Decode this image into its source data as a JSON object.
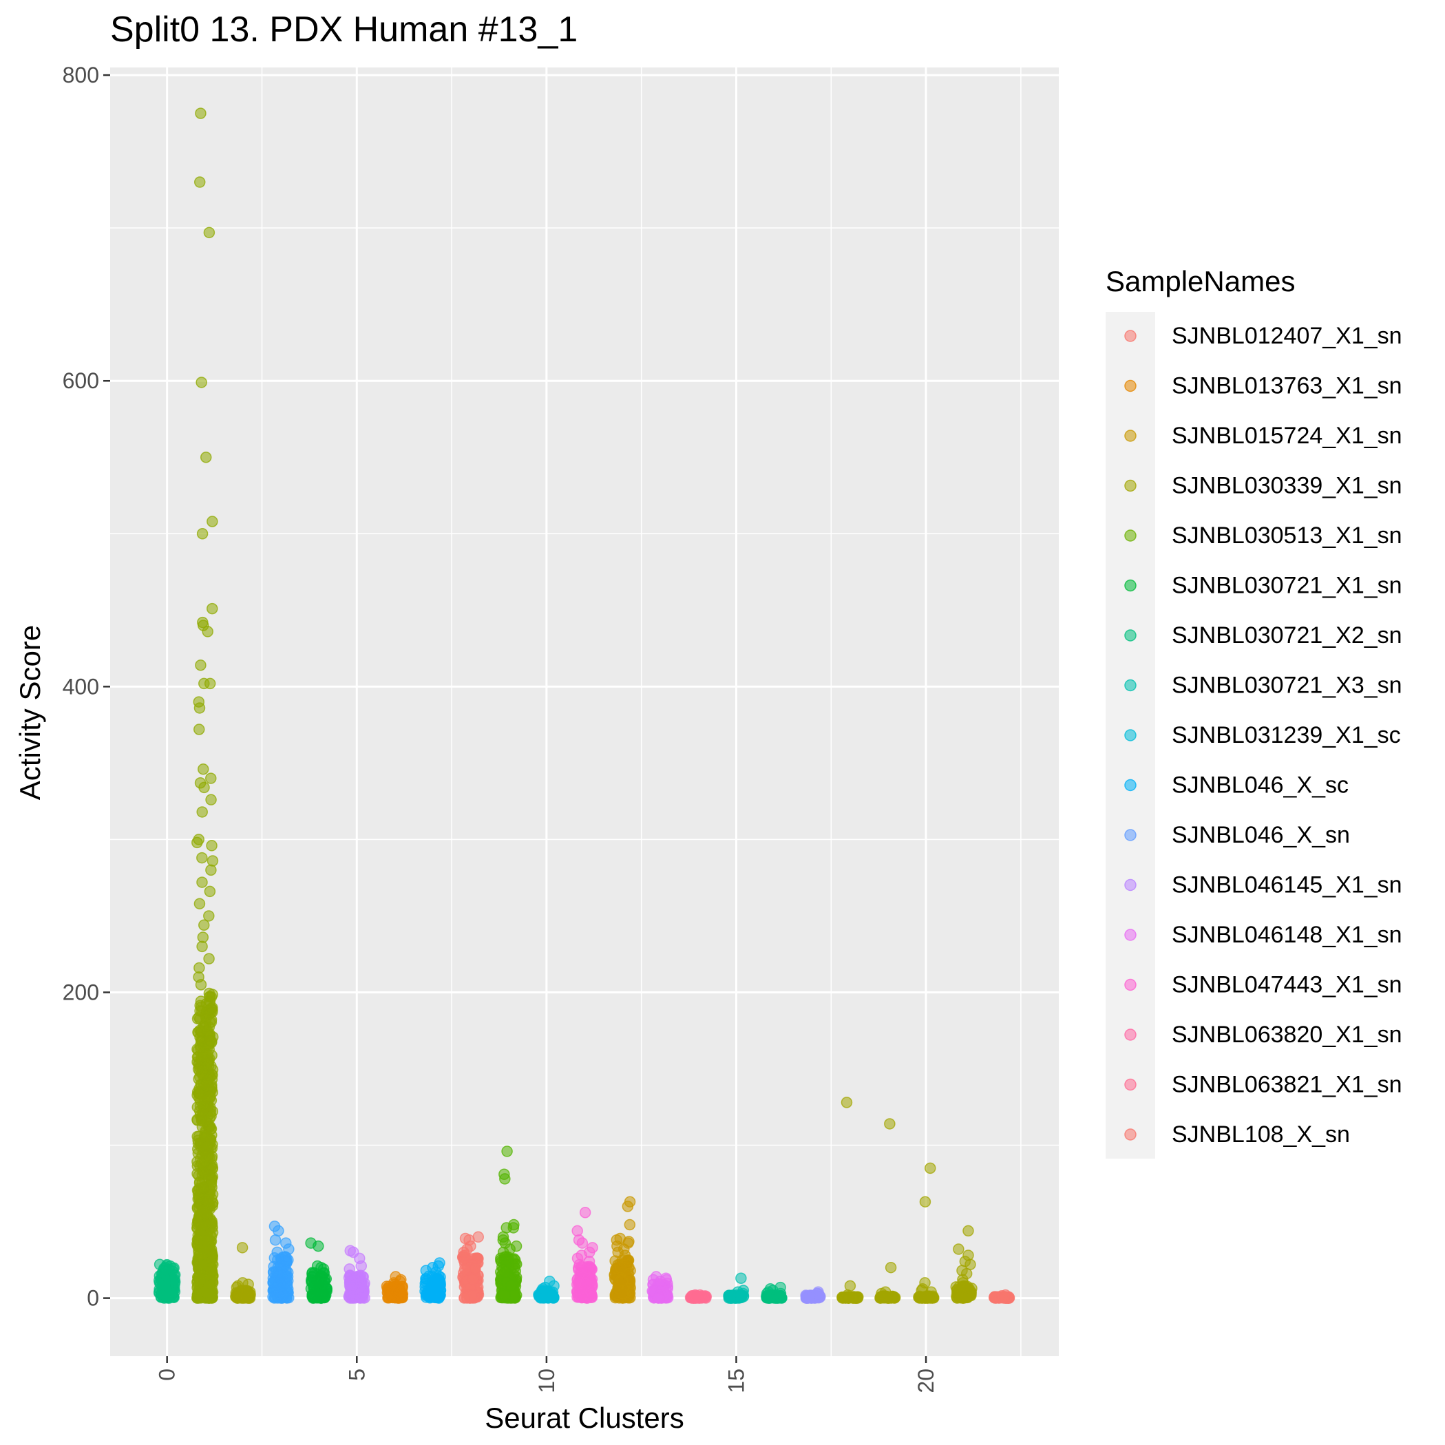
{
  "chart_data": {
    "type": "scatter",
    "title": "Split0 13. PDX Human #13_1",
    "xlabel": "Seurat Clusters",
    "ylabel": "Activity Score",
    "xlim": [
      -1.5,
      23.5
    ],
    "ylim": [
      -38,
      805
    ],
    "x_ticks": [
      0,
      5,
      10,
      15,
      20
    ],
    "y_ticks": [
      0,
      200,
      400,
      600,
      800
    ],
    "grid": true,
    "legend": {
      "title": "SampleNames",
      "placement": "right",
      "entries": [
        {
          "name": "SJNBL012407_X1_sn",
          "color": "#F8766D"
        },
        {
          "name": "SJNBL013763_X1_sn",
          "color": "#E58700"
        },
        {
          "name": "SJNBL015724_X1_sn",
          "color": "#C99800"
        },
        {
          "name": "SJNBL030339_X1_sn",
          "color": "#A3A500"
        },
        {
          "name": "SJNBL030513_X1_sn",
          "color": "#6BB100"
        },
        {
          "name": "SJNBL030721_X1_sn",
          "color": "#00BA38"
        },
        {
          "name": "SJNBL030721_X2_sn",
          "color": "#00BF7D"
        },
        {
          "name": "SJNBL030721_X3_sn",
          "color": "#00C0AF"
        },
        {
          "name": "SJNBL031239_X1_sc",
          "color": "#00BCD8"
        },
        {
          "name": "SJNBL046_X_sc",
          "color": "#00B0F6"
        },
        {
          "name": "SJNBL046_X_sn",
          "color": "#619CFF"
        },
        {
          "name": "SJNBL046145_X1_sn",
          "color": "#B983FF"
        },
        {
          "name": "SJNBL046148_X1_sn",
          "color": "#E76BF3"
        },
        {
          "name": "SJNBL047443_X1_sn",
          "color": "#FD61D1"
        },
        {
          "name": "SJNBL063820_X1_sn",
          "color": "#FF67A4"
        },
        {
          "name": "SJNBL063821_X1_sn",
          "color": "#FF6C91"
        },
        {
          "name": "SJNBL108_X_sn",
          "color": "#F8766D"
        }
      ]
    },
    "clusters": [
      {
        "cluster": 0,
        "color": "#00BF7D",
        "max": 22,
        "extra": [
          22,
          20,
          18,
          15,
          12,
          10,
          8
        ]
      },
      {
        "cluster": 1,
        "color": "#8FAA00",
        "max": 200,
        "extra": [
          775,
          730,
          697,
          599,
          550,
          508,
          500,
          451,
          442,
          440,
          436,
          414,
          402,
          402,
          390,
          386,
          372,
          346,
          340,
          337,
          334,
          326,
          318,
          300,
          298,
          296,
          288,
          286,
          280,
          272,
          266,
          258,
          250,
          244,
          236,
          230,
          222,
          216,
          210,
          205
        ]
      },
      {
        "cluster": 2,
        "color": "#A3A500",
        "max": 5,
        "extra": [
          33,
          10,
          9,
          8,
          7
        ]
      },
      {
        "cluster": 3,
        "color": "#35A2FF",
        "max": 28,
        "extra": [
          47,
          44,
          38,
          36,
          32,
          30
        ]
      },
      {
        "cluster": 4,
        "color": "#00BA38",
        "max": 17,
        "extra": [
          36,
          34,
          21,
          20,
          19
        ]
      },
      {
        "cluster": 5,
        "color": "#C77CFF",
        "max": 15,
        "extra": [
          31,
          30,
          26,
          21,
          19
        ]
      },
      {
        "cluster": 6,
        "color": "#E58700",
        "max": 8,
        "extra": [
          14,
          12,
          11,
          10,
          9
        ]
      },
      {
        "cluster": 7,
        "color": "#00B0F6",
        "max": 15,
        "extra": [
          23,
          21,
          20,
          18,
          17
        ]
      },
      {
        "cluster": 8,
        "color": "#F8766D",
        "max": 28,
        "extra": [
          40,
          39,
          38,
          34,
          32,
          30
        ]
      },
      {
        "cluster": 9,
        "color": "#53B400",
        "max": 28,
        "extra": [
          96,
          81,
          78,
          48,
          46,
          46,
          40,
          38,
          36,
          34,
          32,
          30
        ]
      },
      {
        "cluster": 10,
        "color": "#00BCD8",
        "max": 5,
        "extra": [
          11,
          8,
          7,
          6
        ]
      },
      {
        "cluster": 11,
        "color": "#FB61D7",
        "max": 22,
        "extra": [
          56,
          44,
          38,
          36,
          33,
          30,
          28,
          26,
          24
        ]
      },
      {
        "cluster": 12,
        "color": "#C99800",
        "max": 25,
        "extra": [
          63,
          60,
          48,
          39,
          38,
          37,
          36,
          34,
          32,
          30,
          28
        ]
      },
      {
        "cluster": 13,
        "color": "#E76BF3",
        "max": 10,
        "extra": [
          14,
          13,
          12,
          12,
          11
        ]
      },
      {
        "cluster": 14,
        "color": "#FF6C91",
        "max": 1.5,
        "extra": [
          2,
          2,
          1.5
        ]
      },
      {
        "cluster": 15,
        "color": "#00C0AF",
        "max": 2,
        "extra": [
          13,
          5,
          4,
          3
        ]
      },
      {
        "cluster": 16,
        "color": "#00BF7D",
        "max": 2,
        "extra": [
          7,
          6,
          5,
          4,
          3,
          3
        ]
      },
      {
        "cluster": 17,
        "color": "#9590FF",
        "max": 2,
        "extra": [
          4,
          3,
          3
        ]
      },
      {
        "cluster": 18,
        "color": "#A3A500",
        "max": 1,
        "extra": [
          128,
          8,
          2
        ]
      },
      {
        "cluster": 19,
        "color": "#A3A500",
        "max": 1.5,
        "extra": [
          114,
          20,
          4,
          3
        ]
      },
      {
        "cluster": 20,
        "color": "#A3A500",
        "max": 1.5,
        "extra": [
          85,
          63,
          10,
          6,
          5,
          4
        ]
      },
      {
        "cluster": 21,
        "color": "#A3A500",
        "max": 8,
        "extra": [
          44,
          32,
          28,
          24,
          22,
          18,
          16,
          12,
          10
        ]
      },
      {
        "cluster": 22,
        "color": "#F8766D",
        "max": 1,
        "extra": [
          2,
          1.5,
          1
        ]
      }
    ]
  }
}
